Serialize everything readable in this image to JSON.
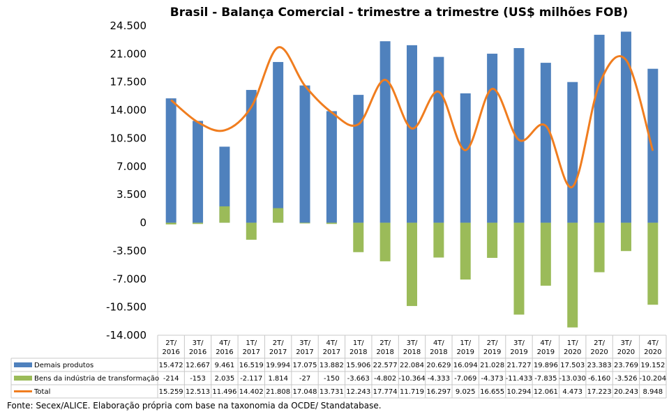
{
  "chart_data": {
    "type": "bar",
    "title": "Brasil - Balança Comercial - trimestre a trimestre (US$ milhões FOB)",
    "categories": [
      [
        "2T/",
        "2016"
      ],
      [
        "3T/",
        "2016"
      ],
      [
        "4T/",
        "2016"
      ],
      [
        "1T/",
        "2017"
      ],
      [
        "2T/",
        "2017"
      ],
      [
        "3T/",
        "2017"
      ],
      [
        "4T/",
        "2017"
      ],
      [
        "1T/",
        "2018"
      ],
      [
        "2T/",
        "2018"
      ],
      [
        "3T/",
        "2018"
      ],
      [
        "4T/",
        "2018"
      ],
      [
        "1T/",
        "2019"
      ],
      [
        "2T/",
        "2019"
      ],
      [
        "3T/",
        "2019"
      ],
      [
        "4T/",
        "2019"
      ],
      [
        "1T/",
        "2020"
      ],
      [
        "2T/",
        "2020"
      ],
      [
        "3T/",
        "2020"
      ],
      [
        "4T/",
        "2020"
      ]
    ],
    "ylim": [
      -14000,
      24500
    ],
    "yticks": [
      24500,
      21000,
      17500,
      14000,
      10500,
      7000,
      3500,
      0,
      -3500,
      -7000,
      -10500,
      -14000
    ],
    "ytick_labels": [
      "24.500",
      "21.000",
      "17.500",
      "14.000",
      "10.500",
      "7.000",
      "3.500",
      "0",
      "-3.500",
      "-7.000",
      "-10.500",
      "-14.000"
    ],
    "series": [
      {
        "name": "Demais produtos",
        "type": "bar",
        "color": "#4F81BD",
        "values": [
          15472,
          12667,
          9461,
          16519,
          19994,
          17075,
          13882,
          15906,
          22577,
          22084,
          20629,
          16094,
          21028,
          21727,
          19896,
          17503,
          23383,
          23769,
          19152
        ],
        "labels": [
          "15.472",
          "12.667",
          "9.461",
          "16.519",
          "19.994",
          "17.075",
          "13.882",
          "15.906",
          "22.577",
          "22.084",
          "20.629",
          "16.094",
          "21.028",
          "21.727",
          "19.896",
          "17.503",
          "23.383",
          "23.769",
          "19.152"
        ]
      },
      {
        "name": "Bens da indústria de transformação",
        "type": "bar",
        "color": "#9BBB59",
        "values": [
          -214,
          -153,
          2035,
          -2117,
          1814,
          -27,
          -150,
          -3663,
          -4802,
          -10364,
          -4333,
          -7069,
          -4373,
          -11433,
          -7835,
          -13030,
          -6160,
          -3526,
          -10204
        ],
        "labels": [
          "-214",
          "-153",
          "2.035",
          "-2.117",
          "1.814",
          "-27",
          "-150",
          "-3.663",
          "-4.802",
          "-10.364",
          "-4.333",
          "-7.069",
          "-4.373",
          "-11.433",
          "-7.835",
          "-13.030",
          "-6.160",
          "-3.526",
          "-10.204"
        ]
      },
      {
        "name": "Total",
        "type": "line",
        "color": "#F07D1F",
        "values": [
          15259,
          12513,
          11496,
          14402,
          21808,
          17048,
          13731,
          12243,
          17774,
          11719,
          16297,
          9025,
          16655,
          10294,
          12061,
          4473,
          17223,
          20243,
          8948
        ],
        "labels": [
          "15.259",
          "12.513",
          "11.496",
          "14.402",
          "21.808",
          "17.048",
          "13.731",
          "12.243",
          "17.774",
          "11.719",
          "16.297",
          "9.025",
          "16.655",
          "10.294",
          "12.061",
          "4.473",
          "17.223",
          "20.243",
          "8.948"
        ]
      }
    ],
    "grid": false,
    "legend": "bottom data table"
  },
  "source": "Fonte: Secex/ALICE. Elaboração própria com base na taxonomia da OCDE/ Standatabase."
}
